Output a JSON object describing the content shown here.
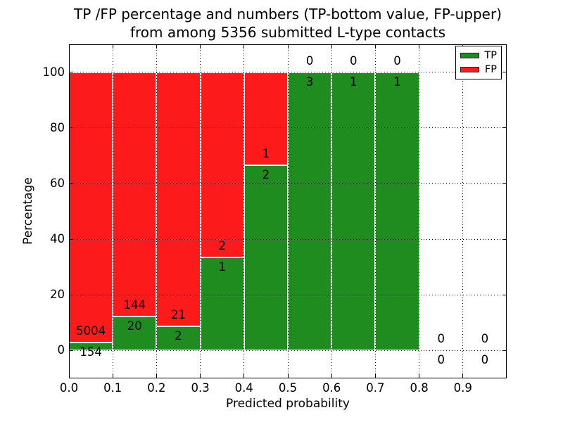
{
  "title": {
    "line1": "TP /FP percentage and numbers (TP-bottom value, FP-upper)",
    "line2": "from among 5356 submitted L-type contacts"
  },
  "axes": {
    "xlabel": "Predicted probability",
    "ylabel": "Percentage",
    "xticks": [
      "0.0",
      "0.1",
      "0.2",
      "0.3",
      "0.4",
      "0.5",
      "0.6",
      "0.7",
      "0.8",
      "0.9"
    ],
    "xtick_values": [
      0,
      0.1,
      0.2,
      0.3,
      0.4,
      0.5,
      0.6,
      0.7,
      0.8,
      0.9
    ],
    "yticks": [
      "0",
      "20",
      "40",
      "60",
      "80",
      "100"
    ],
    "ytick_values": [
      0,
      20,
      40,
      60,
      80,
      100
    ],
    "xlim": [
      0,
      1
    ],
    "ylim": [
      -10,
      110
    ]
  },
  "legend": {
    "items": [
      {
        "label": "TP",
        "color": "#1e8c1e"
      },
      {
        "label": "FP",
        "color": "#fc1a1a"
      }
    ]
  },
  "chart_data": {
    "type": "bar",
    "stacked": true,
    "normalized_to_percent": true,
    "title": "TP /FP percentage and numbers (TP-bottom value, FP-upper) from among 5356 submitted L-type contacts",
    "xlabel": "Predicted probability",
    "ylabel": "Percentage",
    "xlim": [
      0,
      1
    ],
    "ylim": [
      -10,
      110
    ],
    "grid": "dotted",
    "legend_position": "upper right",
    "total_contacts": 5356,
    "series": [
      {
        "name": "TP",
        "color": "#1e8c1e",
        "position": "bottom"
      },
      {
        "name": "FP",
        "color": "#fc1a1a",
        "position": "top"
      }
    ],
    "bins": [
      {
        "x_start": 0.0,
        "x_end": 0.1,
        "tp": 154,
        "fp": 5004
      },
      {
        "x_start": 0.1,
        "x_end": 0.2,
        "tp": 20,
        "fp": 144
      },
      {
        "x_start": 0.2,
        "x_end": 0.3,
        "tp": 2,
        "fp": 21
      },
      {
        "x_start": 0.3,
        "x_end": 0.4,
        "tp": 1,
        "fp": 2
      },
      {
        "x_start": 0.4,
        "x_end": 0.5,
        "tp": 2,
        "fp": 1
      },
      {
        "x_start": 0.5,
        "x_end": 0.6,
        "tp": 3,
        "fp": 0
      },
      {
        "x_start": 0.6,
        "x_end": 0.7,
        "tp": 1,
        "fp": 0
      },
      {
        "x_start": 0.7,
        "x_end": 0.8,
        "tp": 1,
        "fp": 0
      },
      {
        "x_start": 0.8,
        "x_end": 0.9,
        "tp": 0,
        "fp": 0
      },
      {
        "x_start": 0.9,
        "x_end": 1.0,
        "tp": 0,
        "fp": 0
      }
    ]
  }
}
